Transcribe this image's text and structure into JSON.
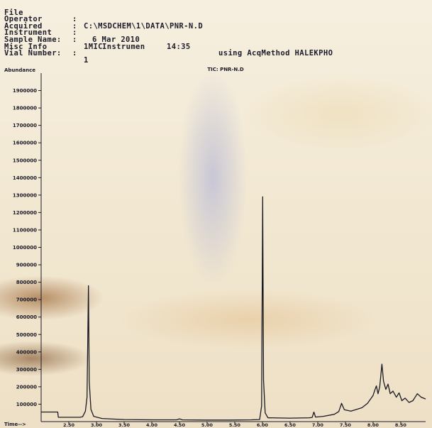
{
  "header": {
    "file_label": "File",
    "file_value": "C:\\MSDCHEM\\1\\DATA\\PNR-N.D",
    "operator_label": "Operator",
    "acquired_label": "Acquired",
    "acquired_date": "6 Mar 2010",
    "acquired_time": "14:35",
    "acquired_method": "using AcqMethod HALEKPHO",
    "instrument_label": "Instrument",
    "instrument_value": "Instrumen",
    "sample_label": "Sample Name:",
    "sample_value": "1MIC",
    "misc_label": "Misc Info",
    "vial_label": "Vial Number:",
    "vial_value": "1"
  },
  "chart_data": {
    "type": "line",
    "title": "TIC: PNR-N.D",
    "ylabel": "Abundance",
    "xlabel": "Time-->",
    "xlim": [
      2.0,
      8.95
    ],
    "ylim": [
      0,
      2000000
    ],
    "y_ticks": [
      100000,
      200000,
      300000,
      400000,
      500000,
      600000,
      700000,
      800000,
      900000,
      1000000,
      1100000,
      1200000,
      1300000,
      1400000,
      1500000,
      1600000,
      1700000,
      1800000,
      1900000
    ],
    "y_tick_labels": [
      "100000",
      "200000",
      "300000",
      "400000",
      "500000",
      "600000",
      "700000",
      "800000",
      "900000",
      "1000000",
      "1100000",
      "1200000",
      "1300000",
      "1400000",
      "1500000",
      "1600000",
      "1700000",
      "1800000",
      "1900000"
    ],
    "x_ticks": [
      2.5,
      3.0,
      3.5,
      4.0,
      4.5,
      5.0,
      5.5,
      6.0,
      6.5,
      7.0,
      7.5,
      8.0,
      8.5
    ],
    "x_tick_labels": [
      "2.50",
      "3.00",
      "3.50",
      "4.00",
      "4.50",
      "5.00",
      "5.50",
      "6.00",
      "6.50",
      "7.00",
      "7.50",
      "8.00",
      "8.50"
    ],
    "series": [
      {
        "color": "#1a1a24",
        "points": [
          [
            2.0,
            55000
          ],
          [
            2.3,
            55000
          ],
          [
            2.31,
            25000
          ],
          [
            2.7,
            25000
          ],
          [
            2.75,
            28000
          ],
          [
            2.8,
            60000
          ],
          [
            2.83,
            140000
          ],
          [
            2.855,
            780000
          ],
          [
            2.87,
            230000
          ],
          [
            2.9,
            70000
          ],
          [
            2.95,
            30000
          ],
          [
            3.1,
            18000
          ],
          [
            3.5,
            12000
          ],
          [
            4.0,
            10000
          ],
          [
            4.45,
            10000
          ],
          [
            4.5,
            16000
          ],
          [
            4.55,
            10000
          ],
          [
            5.0,
            9000
          ],
          [
            5.4,
            9000
          ],
          [
            5.8,
            10000
          ],
          [
            5.95,
            12000
          ],
          [
            5.985,
            90000
          ],
          [
            6.005,
            1290000
          ],
          [
            6.02,
            240000
          ],
          [
            6.05,
            50000
          ],
          [
            6.1,
            22000
          ],
          [
            6.5,
            20000
          ],
          [
            6.85,
            22000
          ],
          [
            6.9,
            24000
          ],
          [
            6.93,
            55000
          ],
          [
            6.96,
            26000
          ],
          [
            7.1,
            30000
          ],
          [
            7.3,
            42000
          ],
          [
            7.38,
            58000
          ],
          [
            7.43,
            105000
          ],
          [
            7.48,
            68000
          ],
          [
            7.6,
            60000
          ],
          [
            7.8,
            80000
          ],
          [
            7.9,
            105000
          ],
          [
            8.0,
            150000
          ],
          [
            8.03,
            180000
          ],
          [
            8.06,
            205000
          ],
          [
            8.09,
            160000
          ],
          [
            8.12,
            200000
          ],
          [
            8.16,
            330000
          ],
          [
            8.19,
            230000
          ],
          [
            8.23,
            185000
          ],
          [
            8.27,
            215000
          ],
          [
            8.31,
            160000
          ],
          [
            8.36,
            175000
          ],
          [
            8.42,
            140000
          ],
          [
            8.47,
            165000
          ],
          [
            8.52,
            120000
          ],
          [
            8.58,
            135000
          ],
          [
            8.65,
            110000
          ],
          [
            8.72,
            120000
          ],
          [
            8.8,
            160000
          ],
          [
            8.87,
            140000
          ],
          [
            8.95,
            130000
          ]
        ]
      }
    ]
  }
}
